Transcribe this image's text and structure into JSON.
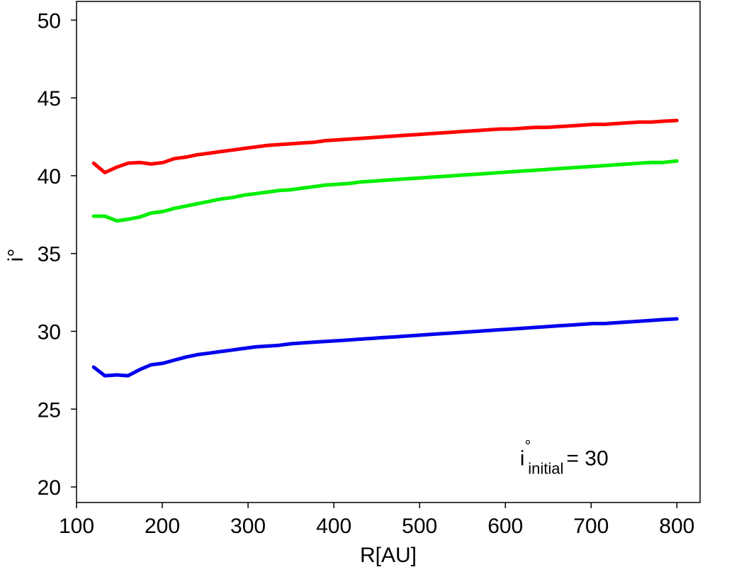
{
  "chart_data": {
    "type": "line",
    "xlabel": "R[AU]",
    "ylabel": "i°",
    "xlim": [
      100,
      827
    ],
    "ylim": [
      19,
      51.2
    ],
    "x_ticks": [
      100,
      200,
      300,
      400,
      500,
      600,
      700,
      800
    ],
    "y_ticks": [
      20,
      25,
      30,
      35,
      40,
      45,
      50
    ],
    "grid": false,
    "legend": "none",
    "annotation": {
      "base": "i",
      "superscript": "°",
      "subscript": "initial",
      "equals_value": "= 30",
      "position_data": [
        617,
        21.4
      ]
    },
    "x": [
      120,
      133,
      147,
      160,
      174,
      187,
      201,
      214,
      228,
      241,
      255,
      268,
      282,
      295,
      309,
      323,
      336,
      350,
      363,
      377,
      390,
      404,
      418,
      431,
      445,
      458,
      472,
      485,
      499,
      512,
      526,
      540,
      553,
      567,
      580,
      594,
      607,
      621,
      634,
      648,
      661,
      675,
      689,
      702,
      716,
      729,
      743,
      756,
      770,
      783,
      800
    ],
    "series": [
      {
        "color": "#ff0000",
        "values": [
          40.8,
          40.2,
          40.55,
          40.8,
          40.85,
          40.75,
          40.85,
          41.1,
          41.2,
          41.35,
          41.45,
          41.55,
          41.65,
          41.75,
          41.85,
          41.95,
          42.0,
          42.05,
          42.1,
          42.15,
          42.25,
          42.3,
          42.35,
          42.4,
          42.45,
          42.5,
          42.55,
          42.6,
          42.65,
          42.7,
          42.75,
          42.8,
          42.85,
          42.9,
          42.95,
          43.0,
          43.0,
          43.05,
          43.1,
          43.1,
          43.15,
          43.2,
          43.25,
          43.3,
          43.3,
          43.35,
          43.4,
          43.45,
          43.45,
          43.5,
          43.55
        ]
      },
      {
        "color": "#00ee00",
        "values": [
          37.4,
          37.4,
          37.1,
          37.2,
          37.35,
          37.6,
          37.7,
          37.9,
          38.05,
          38.2,
          38.35,
          38.5,
          38.6,
          38.75,
          38.85,
          38.95,
          39.05,
          39.1,
          39.2,
          39.3,
          39.4,
          39.45,
          39.5,
          39.6,
          39.65,
          39.7,
          39.75,
          39.8,
          39.85,
          39.9,
          39.95,
          40.0,
          40.05,
          40.1,
          40.15,
          40.2,
          40.25,
          40.3,
          40.35,
          40.4,
          40.45,
          40.5,
          40.55,
          40.6,
          40.65,
          40.7,
          40.75,
          40.8,
          40.85,
          40.85,
          40.95
        ]
      },
      {
        "color": "#0000ee",
        "values": [
          27.7,
          27.15,
          27.2,
          27.15,
          27.55,
          27.85,
          27.95,
          28.15,
          28.35,
          28.5,
          28.6,
          28.7,
          28.8,
          28.9,
          29.0,
          29.05,
          29.1,
          29.2,
          29.25,
          29.3,
          29.35,
          29.4,
          29.45,
          29.5,
          29.55,
          29.6,
          29.65,
          29.7,
          29.75,
          29.8,
          29.85,
          29.9,
          29.95,
          30.0,
          30.05,
          30.1,
          30.15,
          30.2,
          30.25,
          30.3,
          30.35,
          30.4,
          30.45,
          30.5,
          30.5,
          30.55,
          30.6,
          30.65,
          30.7,
          30.75,
          30.8
        ]
      }
    ]
  }
}
